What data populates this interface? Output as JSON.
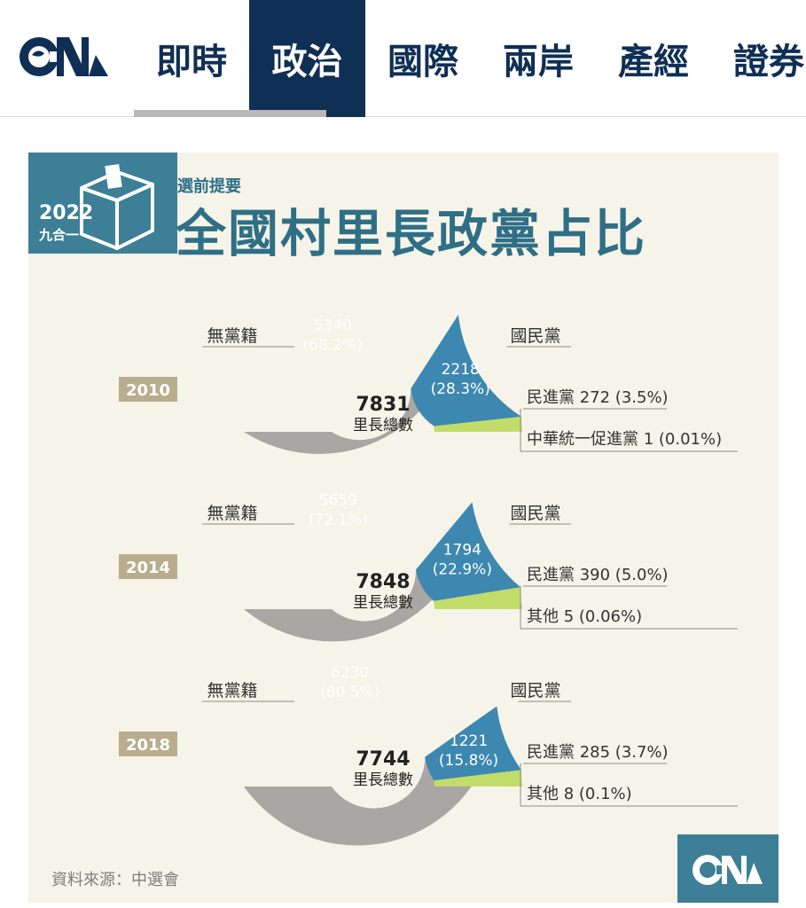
{
  "nav": {
    "tabs": [
      {
        "label": "即時"
      },
      {
        "label": "政治",
        "active": true
      },
      {
        "label": "國際"
      },
      {
        "label": "兩岸"
      },
      {
        "label": "產經"
      },
      {
        "label": "證券"
      }
    ]
  },
  "infographic": {
    "badge_year": "2022",
    "badge_sub": "九合一",
    "pre_title": "選前提要",
    "title": "全國村里長政黨占比",
    "source": "資料來源：中選會"
  },
  "colors": {
    "independent": "#aaa6a4",
    "kmt": "#3d88b0",
    "dpp": "#c2dc6a",
    "brand": "#0f2f55",
    "year_box": "#b9ad8e"
  },
  "chart_data": [
    {
      "type": "pie",
      "year": "2010",
      "total": "7831",
      "total_label": "里長總數",
      "slices": [
        {
          "name": "無黨籍",
          "value": 5340,
          "percent": "68.2%"
        },
        {
          "name": "國民黨",
          "value": 2218,
          "percent": "28.3%"
        },
        {
          "name": "民進黨",
          "value": 272,
          "percent": "3.5%"
        },
        {
          "name": "中華統一促進黨",
          "value": 1,
          "percent": "0.01%"
        }
      ],
      "outside_labels": [
        "民進黨 272 (3.5%)",
        "中華統一促進黨 1 (0.01%)"
      ]
    },
    {
      "type": "pie",
      "year": "2014",
      "total": "7848",
      "total_label": "里長總數",
      "slices": [
        {
          "name": "無黨籍",
          "value": 5659,
          "percent": "72.1%"
        },
        {
          "name": "國民黨",
          "value": 1794,
          "percent": "22.9%"
        },
        {
          "name": "民進黨",
          "value": 390,
          "percent": "5.0%"
        },
        {
          "name": "其他",
          "value": 5,
          "percent": "0.06%"
        }
      ],
      "outside_labels": [
        "民進黨 390 (5.0%)",
        "其他 5 (0.06%)"
      ]
    },
    {
      "type": "pie",
      "year": "2018",
      "total": "7744",
      "total_label": "里長總數",
      "slices": [
        {
          "name": "無黨籍",
          "value": 6230,
          "percent": "80.5%"
        },
        {
          "name": "國民黨",
          "value": 1221,
          "percent": "15.8%"
        },
        {
          "name": "民進黨",
          "value": 285,
          "percent": "3.7%"
        },
        {
          "name": "其他",
          "value": 8,
          "percent": "0.1%"
        }
      ],
      "outside_labels": [
        "民進黨 285 (3.7%)",
        "其他 8 (0.1%)"
      ]
    }
  ]
}
